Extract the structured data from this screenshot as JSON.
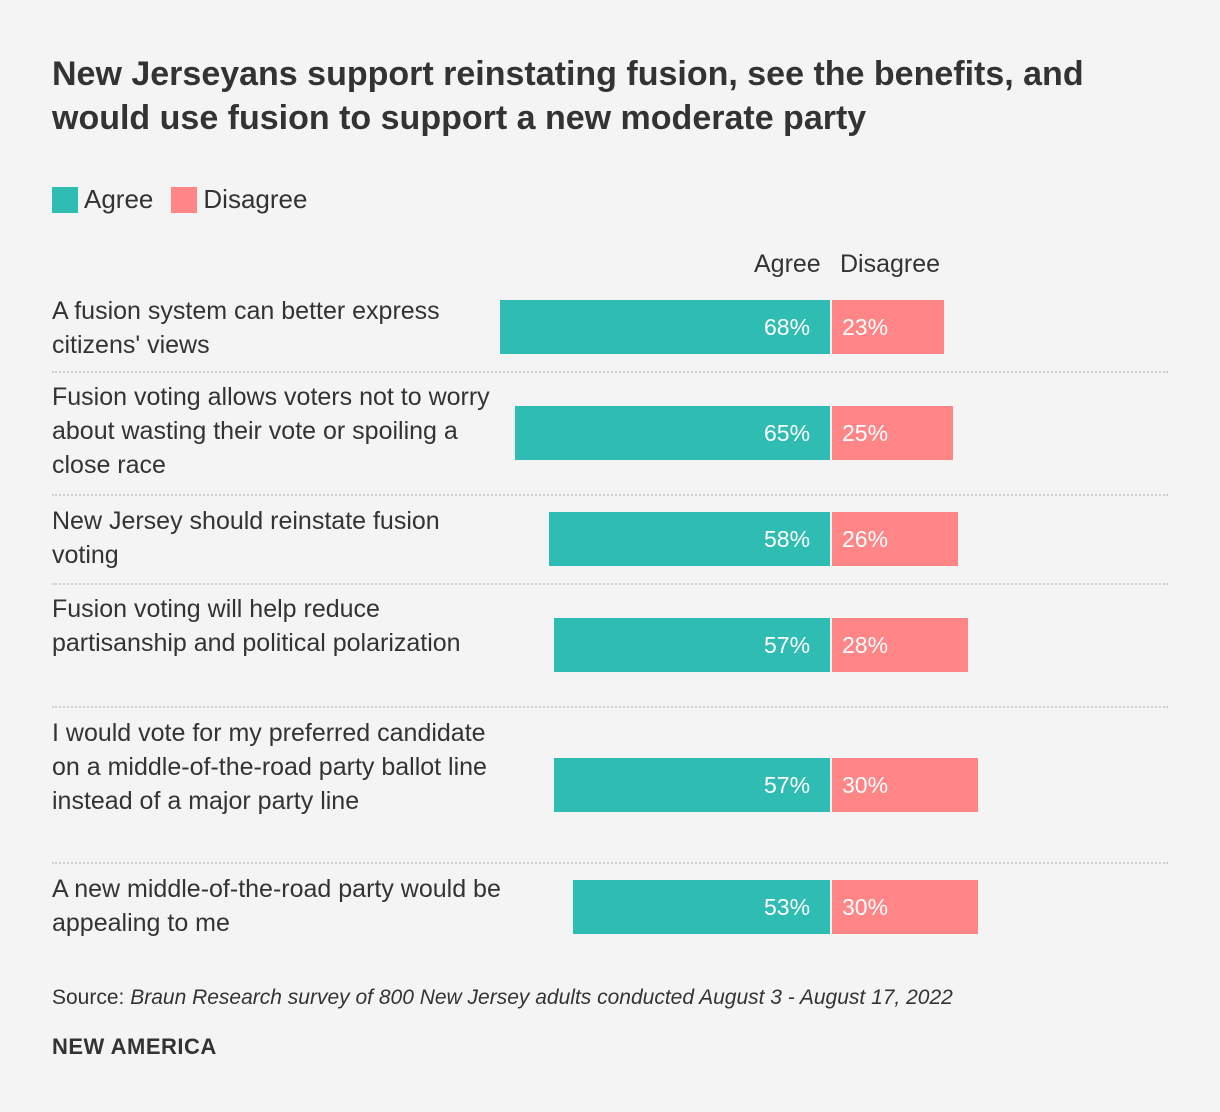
{
  "title": "New Jerseyans support reinstating fusion, see the benefits, and would use fusion to support a new moderate party",
  "legend": [
    {
      "label": "Agree",
      "color": "#2fbdb3"
    },
    {
      "label": "Disagree",
      "color": "#ff8587"
    }
  ],
  "column_headers": {
    "agree": "Agree",
    "disagree": "Disagree"
  },
  "source": {
    "prefix": "Source:",
    "text": "Braun Research survey of 800 New Jersey adults conducted August 3 - August 17, 2022"
  },
  "brand": "NEW AMERICA",
  "chart_data": {
    "type": "bar",
    "orientation": "horizontal-diverging",
    "title": "New Jerseyans support reinstating fusion, see the benefits, and would use fusion to support a new moderate party",
    "categories": [
      "A fusion system can better express citizens' views",
      "Fusion voting allows voters not to worry about wasting their vote or spoiling a close race",
      "New Jersey should reinstate fusion voting",
      "Fusion voting will help reduce partisanship and political polarization",
      "I would vote for my preferred candidate on a middle-of-the-road party ballot line instead of a major party line",
      "A new middle-of-the-road party would be appealing to me"
    ],
    "series": [
      {
        "name": "Agree",
        "values": [
          68,
          65,
          58,
          57,
          57,
          53
        ],
        "labels": [
          "68%",
          "65%",
          "58%",
          "57%",
          "57%",
          "53%"
        ],
        "color": "#2fbdb3"
      },
      {
        "name": "Disagree",
        "values": [
          23,
          25,
          26,
          28,
          30,
          30
        ],
        "labels": [
          "23%",
          "25%",
          "26%",
          "28%",
          "30%",
          "30%"
        ],
        "color": "#ff8587"
      }
    ],
    "unit": "%"
  }
}
